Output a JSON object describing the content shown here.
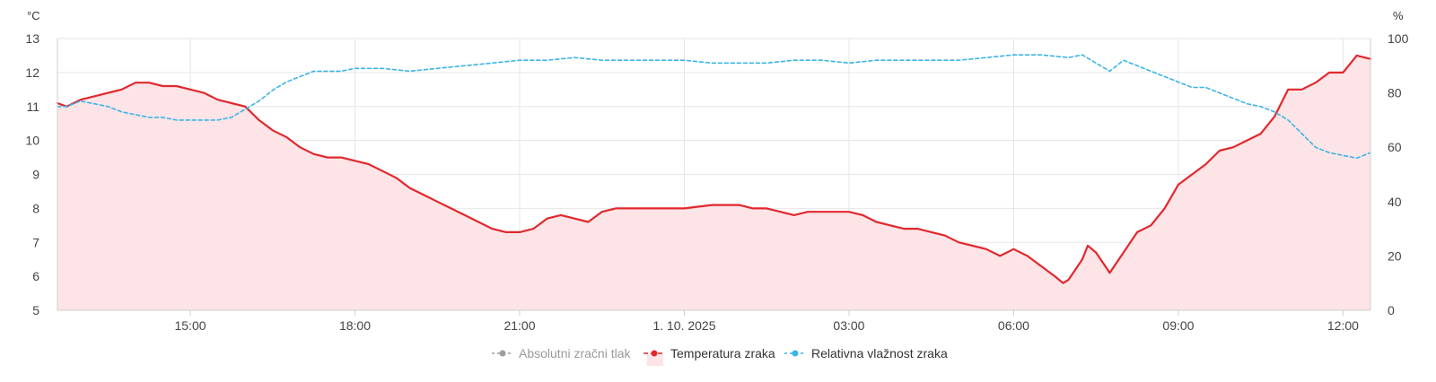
{
  "chart_data": {
    "type": "line",
    "y_left": {
      "unit": "°C",
      "ticks": [
        5,
        6,
        7,
        8,
        9,
        10,
        11,
        12,
        13
      ],
      "range": [
        5,
        13
      ]
    },
    "y_right": {
      "unit": "%",
      "ticks": [
        0,
        20,
        40,
        60,
        80,
        100
      ],
      "range": [
        0,
        100
      ]
    },
    "x_range": [
      12.0,
      12.5
    ],
    "x_ticks": [
      {
        "x": 15.0,
        "label": "15:00"
      },
      {
        "x": 18.0,
        "label": "18:00"
      },
      {
        "x": 21.0,
        "label": "21:00"
      },
      {
        "x": 24.0,
        "label": "1. 10. 2025"
      },
      {
        "x": 27.0,
        "label": "03:00"
      },
      {
        "x": 30.0,
        "label": "06:00"
      },
      {
        "x": 33.0,
        "label": "09:00"
      },
      {
        "x": 36.0,
        "label": "12:00"
      }
    ],
    "x_range_hours": [
      12.58,
      36.5
    ],
    "grid": true,
    "legend_position": "bottom",
    "series": [
      {
        "name": "Absolutni zračni tlak",
        "axis": "left",
        "hidden": true,
        "color": "#9e9e9e",
        "points": []
      },
      {
        "name": "Temperatura zraka",
        "axis": "left",
        "color": "#e0282e",
        "fill": "#fde4e6",
        "points": [
          [
            12.58,
            11.1
          ],
          [
            12.75,
            11.0
          ],
          [
            13.0,
            11.2
          ],
          [
            13.25,
            11.3
          ],
          [
            13.5,
            11.4
          ],
          [
            13.75,
            11.5
          ],
          [
            14.0,
            11.7
          ],
          [
            14.25,
            11.7
          ],
          [
            14.5,
            11.6
          ],
          [
            14.75,
            11.6
          ],
          [
            15.0,
            11.5
          ],
          [
            15.25,
            11.4
          ],
          [
            15.5,
            11.2
          ],
          [
            15.75,
            11.1
          ],
          [
            16.0,
            11.0
          ],
          [
            16.25,
            10.6
          ],
          [
            16.5,
            10.3
          ],
          [
            16.75,
            10.1
          ],
          [
            17.0,
            9.8
          ],
          [
            17.25,
            9.6
          ],
          [
            17.5,
            9.5
          ],
          [
            17.75,
            9.5
          ],
          [
            18.0,
            9.4
          ],
          [
            18.25,
            9.3
          ],
          [
            18.5,
            9.1
          ],
          [
            18.75,
            8.9
          ],
          [
            19.0,
            8.6
          ],
          [
            19.25,
            8.4
          ],
          [
            19.5,
            8.2
          ],
          [
            19.75,
            8.0
          ],
          [
            20.0,
            7.8
          ],
          [
            20.25,
            7.6
          ],
          [
            20.5,
            7.4
          ],
          [
            20.75,
            7.3
          ],
          [
            21.0,
            7.3
          ],
          [
            21.25,
            7.4
          ],
          [
            21.5,
            7.7
          ],
          [
            21.75,
            7.8
          ],
          [
            22.0,
            7.7
          ],
          [
            22.25,
            7.6
          ],
          [
            22.5,
            7.9
          ],
          [
            22.75,
            8.0
          ],
          [
            23.0,
            8.0
          ],
          [
            23.5,
            8.0
          ],
          [
            24.0,
            8.0
          ],
          [
            24.5,
            8.1
          ],
          [
            25.0,
            8.1
          ],
          [
            25.25,
            8.0
          ],
          [
            25.5,
            8.0
          ],
          [
            25.75,
            7.9
          ],
          [
            26.0,
            7.8
          ],
          [
            26.25,
            7.9
          ],
          [
            26.5,
            7.9
          ],
          [
            26.75,
            7.9
          ],
          [
            27.0,
            7.9
          ],
          [
            27.25,
            7.8
          ],
          [
            27.5,
            7.6
          ],
          [
            27.75,
            7.5
          ],
          [
            28.0,
            7.4
          ],
          [
            28.25,
            7.4
          ],
          [
            28.5,
            7.3
          ],
          [
            28.75,
            7.2
          ],
          [
            29.0,
            7.0
          ],
          [
            29.25,
            6.9
          ],
          [
            29.5,
            6.8
          ],
          [
            29.75,
            6.6
          ],
          [
            30.0,
            6.8
          ],
          [
            30.25,
            6.6
          ],
          [
            30.5,
            6.3
          ],
          [
            30.75,
            6.0
          ],
          [
            30.9,
            5.8
          ],
          [
            31.0,
            5.9
          ],
          [
            31.25,
            6.5
          ],
          [
            31.35,
            6.9
          ],
          [
            31.5,
            6.7
          ],
          [
            31.75,
            6.1
          ],
          [
            32.0,
            6.7
          ],
          [
            32.25,
            7.3
          ],
          [
            32.5,
            7.5
          ],
          [
            32.75,
            8.0
          ],
          [
            33.0,
            8.7
          ],
          [
            33.25,
            9.0
          ],
          [
            33.5,
            9.3
          ],
          [
            33.75,
            9.7
          ],
          [
            34.0,
            9.8
          ],
          [
            34.25,
            10.0
          ],
          [
            34.5,
            10.2
          ],
          [
            34.75,
            10.7
          ],
          [
            35.0,
            11.5
          ],
          [
            35.25,
            11.5
          ],
          [
            35.5,
            11.7
          ],
          [
            35.75,
            12.0
          ],
          [
            36.0,
            12.0
          ],
          [
            36.25,
            12.5
          ],
          [
            36.5,
            12.4
          ]
        ]
      },
      {
        "name": "Relativna vlažnost zraka",
        "axis": "right",
        "color": "#3cb4e6",
        "dashed": true,
        "points": [
          [
            12.58,
            75
          ],
          [
            12.75,
            75
          ],
          [
            13.0,
            77
          ],
          [
            13.25,
            76
          ],
          [
            13.5,
            75
          ],
          [
            13.75,
            73
          ],
          [
            14.0,
            72
          ],
          [
            14.25,
            71
          ],
          [
            14.5,
            71
          ],
          [
            14.75,
            70
          ],
          [
            15.0,
            70
          ],
          [
            15.25,
            70
          ],
          [
            15.5,
            70
          ],
          [
            15.75,
            71
          ],
          [
            16.0,
            74
          ],
          [
            16.25,
            77
          ],
          [
            16.5,
            81
          ],
          [
            16.75,
            84
          ],
          [
            17.0,
            86
          ],
          [
            17.25,
            88
          ],
          [
            17.5,
            88
          ],
          [
            17.75,
            88
          ],
          [
            18.0,
            89
          ],
          [
            18.5,
            89
          ],
          [
            19.0,
            88
          ],
          [
            19.5,
            89
          ],
          [
            20.0,
            90
          ],
          [
            20.5,
            91
          ],
          [
            21.0,
            92
          ],
          [
            21.5,
            92
          ],
          [
            22.0,
            93
          ],
          [
            22.5,
            92
          ],
          [
            23.0,
            92
          ],
          [
            23.5,
            92
          ],
          [
            24.0,
            92
          ],
          [
            24.5,
            91
          ],
          [
            25.0,
            91
          ],
          [
            25.5,
            91
          ],
          [
            26.0,
            92
          ],
          [
            26.5,
            92
          ],
          [
            27.0,
            91
          ],
          [
            27.5,
            92
          ],
          [
            28.0,
            92
          ],
          [
            28.5,
            92
          ],
          [
            29.0,
            92
          ],
          [
            29.5,
            93
          ],
          [
            30.0,
            94
          ],
          [
            30.5,
            94
          ],
          [
            31.0,
            93
          ],
          [
            31.25,
            94
          ],
          [
            31.5,
            91
          ],
          [
            31.75,
            88
          ],
          [
            32.0,
            92
          ],
          [
            32.25,
            90
          ],
          [
            32.5,
            88
          ],
          [
            32.75,
            86
          ],
          [
            33.0,
            84
          ],
          [
            33.25,
            82
          ],
          [
            33.5,
            82
          ],
          [
            33.75,
            80
          ],
          [
            34.0,
            78
          ],
          [
            34.25,
            76
          ],
          [
            34.5,
            75
          ],
          [
            34.75,
            73
          ],
          [
            35.0,
            70
          ],
          [
            35.25,
            65
          ],
          [
            35.5,
            60
          ],
          [
            35.75,
            58
          ],
          [
            36.0,
            57
          ],
          [
            36.25,
            56
          ],
          [
            36.5,
            58
          ]
        ]
      }
    ]
  }
}
